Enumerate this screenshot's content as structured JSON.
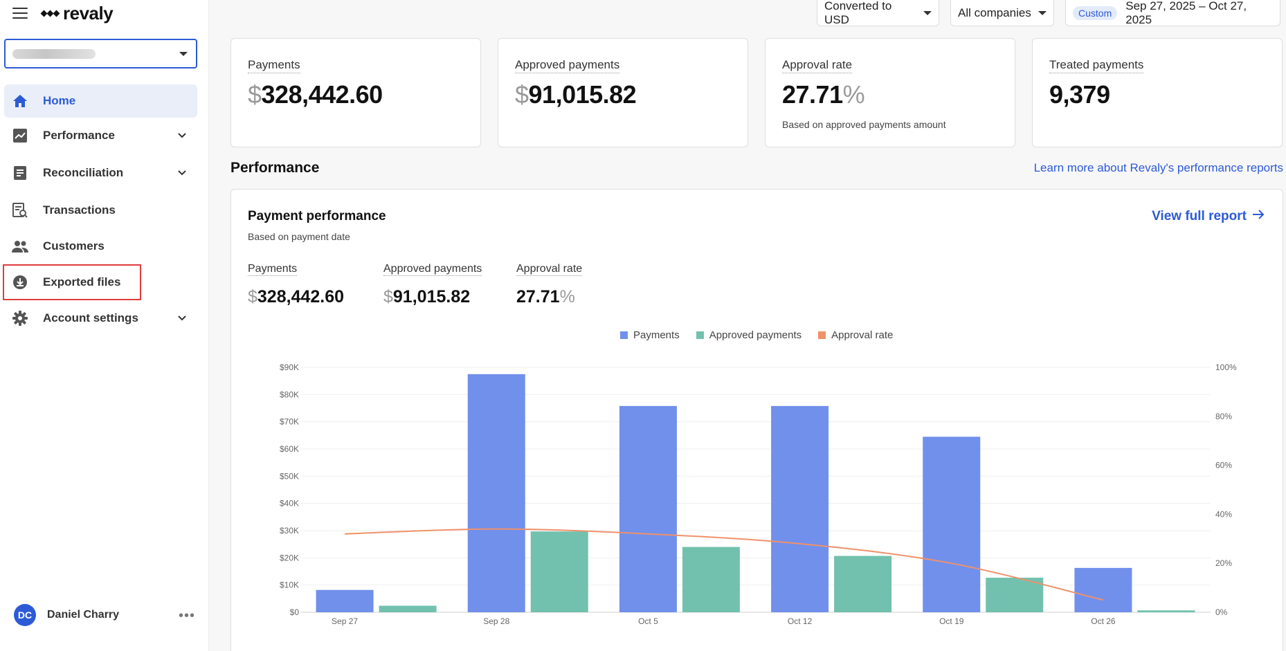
{
  "app": {
    "brand": "revaly"
  },
  "sidebar": {
    "items": [
      {
        "label": "Home",
        "icon": "home-icon",
        "active": true
      },
      {
        "label": "Performance",
        "icon": "chart-line-icon",
        "expandable": true
      },
      {
        "label": "Reconciliation",
        "icon": "document-icon",
        "expandable": true
      },
      {
        "label": "Transactions",
        "icon": "receipt-search-icon"
      },
      {
        "label": "Customers",
        "icon": "people-icon"
      },
      {
        "label": "Exported files",
        "icon": "download-circle-icon"
      },
      {
        "label": "Account settings",
        "icon": "gear-icon",
        "expandable": true
      }
    ],
    "user": {
      "initials": "DC",
      "name": "Daniel Charry",
      "more": "•••"
    }
  },
  "filters": {
    "currency": "Converted to USD",
    "company": "All companies",
    "date_badge": "Custom",
    "date_range": "Sep 27, 2025 – Oct 27, 2025"
  },
  "kpis": [
    {
      "label": "Payments",
      "unit": "$",
      "value": "328,442.60"
    },
    {
      "label": "Approved payments",
      "unit": "$",
      "value": "91,015.82"
    },
    {
      "label": "Approval rate",
      "value": "27.71",
      "unit_after": "%",
      "sub": "Based on approved payments amount"
    },
    {
      "label": "Treated payments",
      "value": "9,379"
    }
  ],
  "section": {
    "title": "Performance",
    "learn_link": "Learn more about Revaly's performance reports"
  },
  "panel": {
    "title": "Payment performance",
    "subtitle": "Based on payment date",
    "view_report": "View full report",
    "mini": [
      {
        "label": "Payments",
        "unit": "$",
        "value": "328,442.60"
      },
      {
        "label": "Approved payments",
        "unit": "$",
        "value": "91,015.82"
      },
      {
        "label": "Approval rate",
        "value": "27.71",
        "unit_after": "%"
      }
    ]
  },
  "colors": {
    "payments": "#7190ec",
    "approved": "#72c1ae",
    "rate": "#f0916a",
    "accent": "#2d5bd6"
  },
  "chart_data": {
    "type": "bar",
    "categories": [
      "Sep 27",
      "Sep 28",
      "Oct 5",
      "Oct 12",
      "Oct 19",
      "Oct 26"
    ],
    "series": [
      {
        "name": "Payments",
        "values": [
          8200,
          87500,
          75800,
          75800,
          64500,
          16300
        ]
      },
      {
        "name": "Approved payments",
        "values": [
          2400,
          29700,
          24000,
          20700,
          12700,
          700
        ]
      },
      {
        "name": "Approval rate",
        "axis": "right",
        "type": "line",
        "values": [
          32,
          34,
          32,
          28,
          20,
          5
        ]
      }
    ],
    "ylim": [
      0,
      90000
    ],
    "y_ticks": [
      "$0",
      "$10K",
      "$20K",
      "$30K",
      "$40K",
      "$50K",
      "$60K",
      "$70K",
      "$80K",
      "$90K"
    ],
    "y2lim": [
      0,
      100
    ],
    "y2_ticks": [
      "0%",
      "20%",
      "40%",
      "60%",
      "80%",
      "100%"
    ],
    "legend": "top-center",
    "grid": true
  }
}
